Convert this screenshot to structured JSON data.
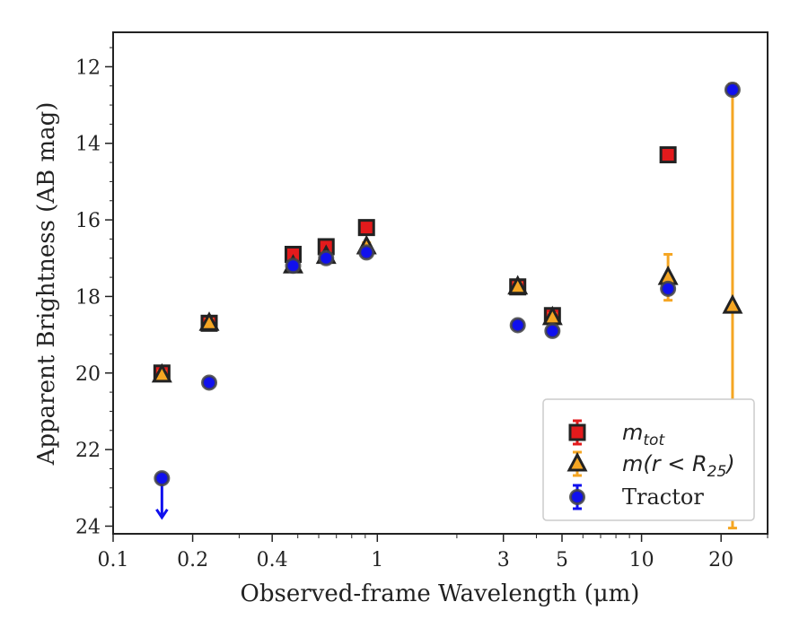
{
  "chart_data": {
    "type": "scatter",
    "xlabel": "Observed-frame Wavelength (μm)",
    "ylabel": "Apparent Brightness (AB mag)",
    "x_scale": "log",
    "y_inverted": true,
    "xlim": [
      0.1,
      30
    ],
    "ylim": [
      24.2,
      11.1
    ],
    "x_ticks": [
      0.1,
      0.2,
      0.4,
      1,
      3,
      5,
      10,
      20
    ],
    "x_tick_labels": [
      "0.1",
      "0.2",
      "0.4",
      "1",
      "3",
      "5",
      "10",
      "20"
    ],
    "y_ticks": [
      12,
      14,
      16,
      18,
      20,
      22,
      24
    ],
    "y_tick_labels": [
      "12",
      "14",
      "16",
      "18",
      "20",
      "22",
      "24"
    ],
    "grid": false,
    "legend_position": "lower-right",
    "series": [
      {
        "key": "mtot",
        "legend_main": "m",
        "legend_sub": "tot",
        "marker": "square",
        "color": "#e31a1c",
        "edge": "#222222",
        "points": [
          {
            "x": 0.153,
            "y": 20.0,
            "err": 0.1
          },
          {
            "x": 0.231,
            "y": 18.7,
            "err": 0.1
          },
          {
            "x": 0.48,
            "y": 16.9,
            "err": 0.1
          },
          {
            "x": 0.64,
            "y": 16.7,
            "err": 0.1
          },
          {
            "x": 0.91,
            "y": 16.2,
            "err": 0.1
          },
          {
            "x": 3.4,
            "y": 17.75,
            "err": 0.1
          },
          {
            "x": 4.6,
            "y": 18.5,
            "err": 0.1
          },
          {
            "x": 12.6,
            "y": 14.3,
            "err": 0.1
          }
        ]
      },
      {
        "key": "mr25",
        "legend_main": "m(r < R",
        "legend_sub": "25",
        "legend_tail": ")",
        "marker": "triangle",
        "color": "#f5a623",
        "edge": "#222222",
        "points": [
          {
            "x": 0.153,
            "y": 20.05,
            "err": 0.1
          },
          {
            "x": 0.231,
            "y": 18.7,
            "err": 0.1
          },
          {
            "x": 0.48,
            "y": 17.2,
            "err": 0.1
          },
          {
            "x": 0.64,
            "y": 16.95,
            "err": 0.1
          },
          {
            "x": 0.91,
            "y": 16.7,
            "err": 0.1
          },
          {
            "x": 3.4,
            "y": 17.75,
            "err": 0.1
          },
          {
            "x": 4.6,
            "y": 18.55,
            "err": 0.1
          },
          {
            "x": 12.6,
            "y": 17.5,
            "err": 0.6
          },
          {
            "x": 22.1,
            "y": 18.25,
            "err": 5.8
          }
        ]
      },
      {
        "key": "tractor",
        "legend_main": "Tractor",
        "marker": "circle",
        "color": "#1010ee",
        "edge": "#444444",
        "points": [
          {
            "x": 0.153,
            "y": 22.75,
            "err": 0,
            "upper_limit": true
          },
          {
            "x": 0.231,
            "y": 20.25,
            "err": 0.05
          },
          {
            "x": 0.48,
            "y": 17.2,
            "err": 0.05
          },
          {
            "x": 0.64,
            "y": 17.0,
            "err": 0.05
          },
          {
            "x": 0.91,
            "y": 16.85,
            "err": 0.05
          },
          {
            "x": 3.4,
            "y": 18.75,
            "err": 0.05
          },
          {
            "x": 4.6,
            "y": 18.9,
            "err": 0.05
          },
          {
            "x": 12.6,
            "y": 17.8,
            "err": 0.05
          },
          {
            "x": 22.1,
            "y": 12.6,
            "err": 0.05
          }
        ]
      }
    ]
  }
}
